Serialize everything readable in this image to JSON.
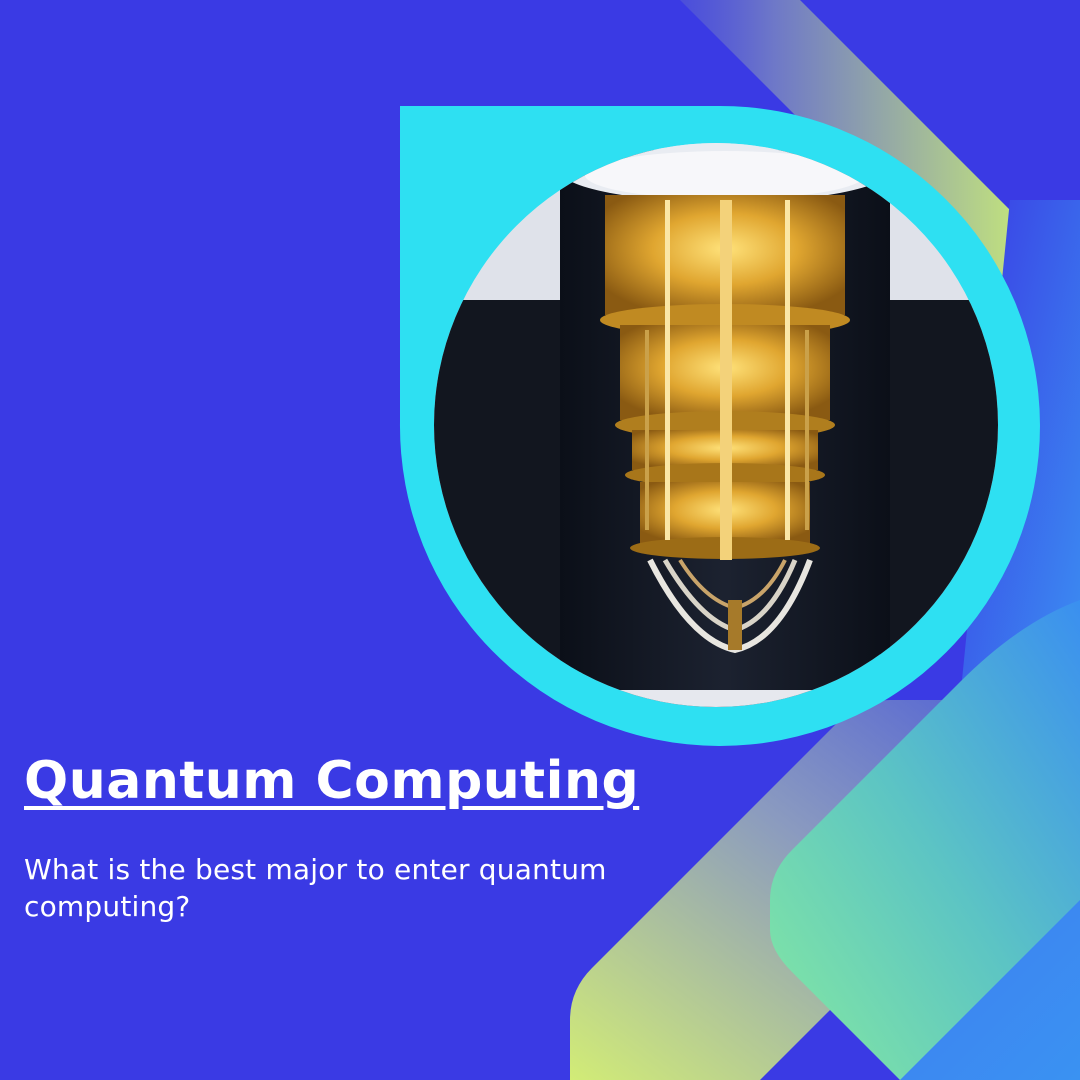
{
  "slide": {
    "title": "Quantum Computing",
    "subtitle": "What is the best major to enter quantum computing?"
  },
  "image": {
    "subject": "quantum computer cryostat chandelier"
  },
  "colors": {
    "background": "#3a3ae4",
    "frame": "#2ee0f2",
    "accent_green": "#c4ea7a",
    "accent_mint": "#7ee8a4",
    "accent_blue": "#3a8ff0",
    "text": "#ffffff"
  }
}
